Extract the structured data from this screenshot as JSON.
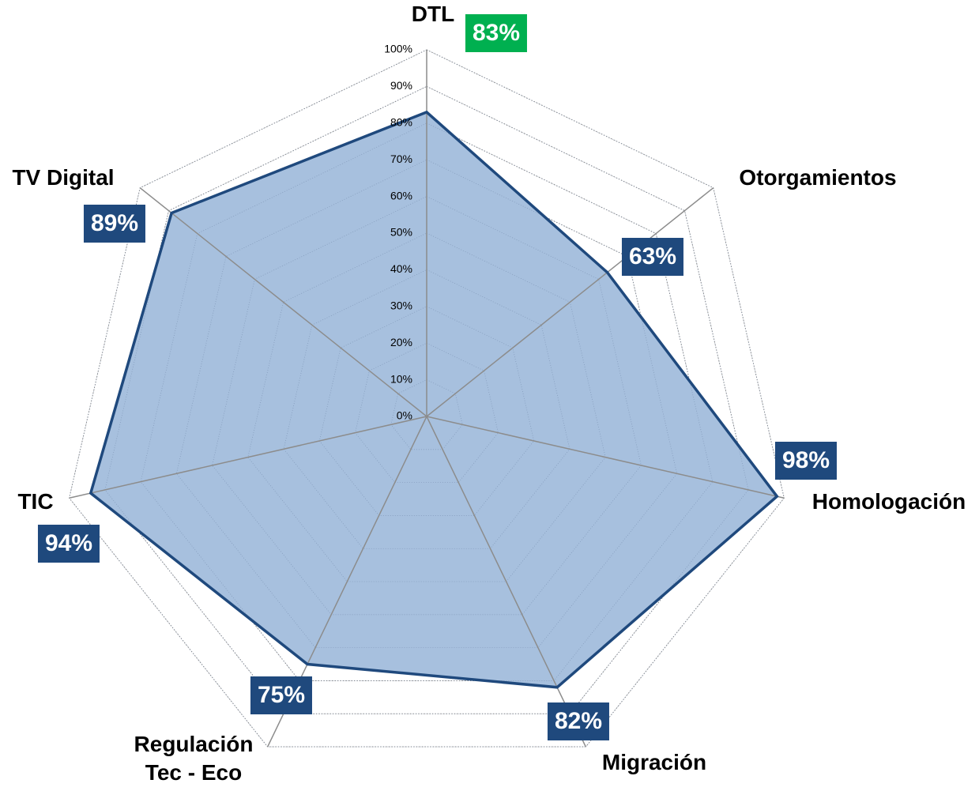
{
  "chart_data": {
    "type": "radar",
    "categories": [
      "DTL",
      "Otorgamientos",
      "Homologación",
      "Migración",
      "Regulación Tec - Eco",
      "TIC",
      "TV Digital"
    ],
    "values": [
      83,
      63,
      98,
      82,
      75,
      94,
      89
    ],
    "value_labels": [
      "83%",
      "63%",
      "98%",
      "82%",
      "75%",
      "94%",
      "89%"
    ],
    "value_label_colors": [
      "#00b050",
      "#1f497d",
      "#1f497d",
      "#1f497d",
      "#1f497d",
      "#1f497d",
      "#1f497d"
    ],
    "color": "#1f497d",
    "fill": "#a7c0de",
    "ylim": [
      0,
      100
    ],
    "yticks": [
      {
        "value": 0,
        "label": "0%"
      },
      {
        "value": 10,
        "label": "10%"
      },
      {
        "value": 20,
        "label": "20%"
      },
      {
        "value": 30,
        "label": "30%"
      },
      {
        "value": 40,
        "label": "40%"
      },
      {
        "value": 50,
        "label": "50%"
      },
      {
        "value": 60,
        "label": "60%"
      },
      {
        "value": 70,
        "label": "70%"
      },
      {
        "value": 80,
        "label": "80%"
      },
      {
        "value": 90,
        "label": "90%"
      },
      {
        "value": 100,
        "label": "100%"
      }
    ],
    "grid": true
  }
}
